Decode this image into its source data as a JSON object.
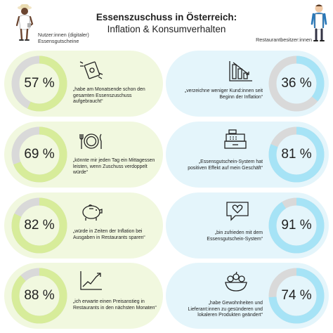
{
  "header": {
    "title_line1": "Essenszuschuss in Österreich:",
    "title_line2": "Inflation & Konsumverhalten"
  },
  "personas": {
    "left_label": "Nutzer:innen (digitaler) Essensgutscheine",
    "right_label": "Restaurantbesitzer:innen"
  },
  "colors": {
    "green_fill": "#d7ec9a",
    "blue_fill": "#a6e3f6",
    "track": "#d9d9d9"
  },
  "chart_data": {
    "type": "donut",
    "users": [
      {
        "value": 57,
        "label": "57 %",
        "icon": "money-wings-icon",
        "text": "„habe am Monatsende schon den gesamten Essenszuschuss aufgebraucht“"
      },
      {
        "value": 69,
        "label": "69 %",
        "icon": "plate-cutlery-icon",
        "text": "„könnte mir jeden Tag ein Mittagessen leisten, wenn Zuschuss verdoppelt würde“"
      },
      {
        "value": 82,
        "label": "82 %",
        "icon": "piggy-bank-icon",
        "text": "„würde in Zeiten der Inflation bei Ausgaben in Restaurants sparen“"
      },
      {
        "value": 88,
        "label": "88 %",
        "icon": "rising-chart-icon",
        "text": "„ich erwarte einen Preisanstieg in Restaurants in den nächsten Monaten“"
      }
    ],
    "owners": [
      {
        "value": 36,
        "label": "36 %",
        "icon": "declining-bars-icon",
        "text": "„verzeichne weniger Kund:innen seit Beginn der Inflation“"
      },
      {
        "value": 81,
        "label": "81 %",
        "icon": "cash-register-icon",
        "text": "„Essensgutschein-System hat positiven Effekt auf mein Geschäft“"
      },
      {
        "value": 91,
        "label": "91 %",
        "icon": "heart-speech-bubble-icon",
        "text": "„bin zufrieden mit dem Essensgutschein-System“"
      },
      {
        "value": 74,
        "label": "74 %",
        "icon": "fruit-bowl-icon",
        "text": "„habe Gewohnheiten und Lieferant:innen zu gesünderen und lokaleren Produkten geändert“"
      }
    ]
  }
}
